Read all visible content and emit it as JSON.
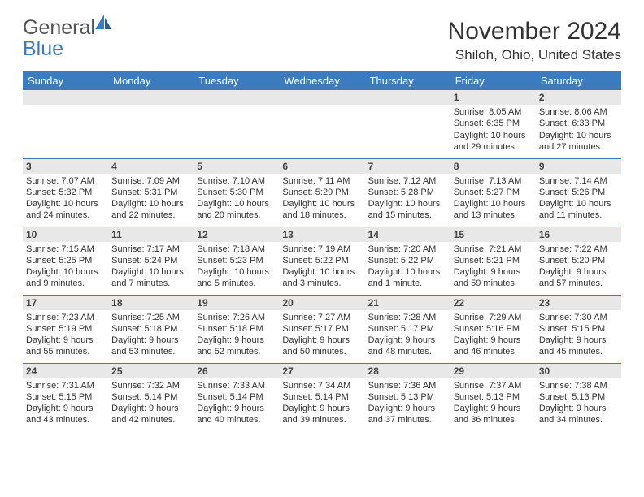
{
  "logo": {
    "text_gray": "General",
    "text_blue": "Blue"
  },
  "title": "November 2024",
  "location": "Shiloh, Ohio, United States",
  "day_headers": [
    "Sunday",
    "Monday",
    "Tuesday",
    "Wednesday",
    "Thursday",
    "Friday",
    "Saturday"
  ],
  "colors": {
    "header_bg": "#3b7bbf",
    "header_fg": "#ffffff",
    "daynum_bg": "#e8e8e8",
    "row_border": "#3b7bbf",
    "body_text": "#333333"
  },
  "weeks": [
    [
      {
        "n": "",
        "sr": "",
        "ss": "",
        "dl": ""
      },
      {
        "n": "",
        "sr": "",
        "ss": "",
        "dl": ""
      },
      {
        "n": "",
        "sr": "",
        "ss": "",
        "dl": ""
      },
      {
        "n": "",
        "sr": "",
        "ss": "",
        "dl": ""
      },
      {
        "n": "",
        "sr": "",
        "ss": "",
        "dl": ""
      },
      {
        "n": "1",
        "sr": "Sunrise: 8:05 AM",
        "ss": "Sunset: 6:35 PM",
        "dl": "Daylight: 10 hours and 29 minutes."
      },
      {
        "n": "2",
        "sr": "Sunrise: 8:06 AM",
        "ss": "Sunset: 6:33 PM",
        "dl": "Daylight: 10 hours and 27 minutes."
      }
    ],
    [
      {
        "n": "3",
        "sr": "Sunrise: 7:07 AM",
        "ss": "Sunset: 5:32 PM",
        "dl": "Daylight: 10 hours and 24 minutes."
      },
      {
        "n": "4",
        "sr": "Sunrise: 7:09 AM",
        "ss": "Sunset: 5:31 PM",
        "dl": "Daylight: 10 hours and 22 minutes."
      },
      {
        "n": "5",
        "sr": "Sunrise: 7:10 AM",
        "ss": "Sunset: 5:30 PM",
        "dl": "Daylight: 10 hours and 20 minutes."
      },
      {
        "n": "6",
        "sr": "Sunrise: 7:11 AM",
        "ss": "Sunset: 5:29 PM",
        "dl": "Daylight: 10 hours and 18 minutes."
      },
      {
        "n": "7",
        "sr": "Sunrise: 7:12 AM",
        "ss": "Sunset: 5:28 PM",
        "dl": "Daylight: 10 hours and 15 minutes."
      },
      {
        "n": "8",
        "sr": "Sunrise: 7:13 AM",
        "ss": "Sunset: 5:27 PM",
        "dl": "Daylight: 10 hours and 13 minutes."
      },
      {
        "n": "9",
        "sr": "Sunrise: 7:14 AM",
        "ss": "Sunset: 5:26 PM",
        "dl": "Daylight: 10 hours and 11 minutes."
      }
    ],
    [
      {
        "n": "10",
        "sr": "Sunrise: 7:15 AM",
        "ss": "Sunset: 5:25 PM",
        "dl": "Daylight: 10 hours and 9 minutes."
      },
      {
        "n": "11",
        "sr": "Sunrise: 7:17 AM",
        "ss": "Sunset: 5:24 PM",
        "dl": "Daylight: 10 hours and 7 minutes."
      },
      {
        "n": "12",
        "sr": "Sunrise: 7:18 AM",
        "ss": "Sunset: 5:23 PM",
        "dl": "Daylight: 10 hours and 5 minutes."
      },
      {
        "n": "13",
        "sr": "Sunrise: 7:19 AM",
        "ss": "Sunset: 5:22 PM",
        "dl": "Daylight: 10 hours and 3 minutes."
      },
      {
        "n": "14",
        "sr": "Sunrise: 7:20 AM",
        "ss": "Sunset: 5:22 PM",
        "dl": "Daylight: 10 hours and 1 minute."
      },
      {
        "n": "15",
        "sr": "Sunrise: 7:21 AM",
        "ss": "Sunset: 5:21 PM",
        "dl": "Daylight: 9 hours and 59 minutes."
      },
      {
        "n": "16",
        "sr": "Sunrise: 7:22 AM",
        "ss": "Sunset: 5:20 PM",
        "dl": "Daylight: 9 hours and 57 minutes."
      }
    ],
    [
      {
        "n": "17",
        "sr": "Sunrise: 7:23 AM",
        "ss": "Sunset: 5:19 PM",
        "dl": "Daylight: 9 hours and 55 minutes."
      },
      {
        "n": "18",
        "sr": "Sunrise: 7:25 AM",
        "ss": "Sunset: 5:18 PM",
        "dl": "Daylight: 9 hours and 53 minutes."
      },
      {
        "n": "19",
        "sr": "Sunrise: 7:26 AM",
        "ss": "Sunset: 5:18 PM",
        "dl": "Daylight: 9 hours and 52 minutes."
      },
      {
        "n": "20",
        "sr": "Sunrise: 7:27 AM",
        "ss": "Sunset: 5:17 PM",
        "dl": "Daylight: 9 hours and 50 minutes."
      },
      {
        "n": "21",
        "sr": "Sunrise: 7:28 AM",
        "ss": "Sunset: 5:17 PM",
        "dl": "Daylight: 9 hours and 48 minutes."
      },
      {
        "n": "22",
        "sr": "Sunrise: 7:29 AM",
        "ss": "Sunset: 5:16 PM",
        "dl": "Daylight: 9 hours and 46 minutes."
      },
      {
        "n": "23",
        "sr": "Sunrise: 7:30 AM",
        "ss": "Sunset: 5:15 PM",
        "dl": "Daylight: 9 hours and 45 minutes."
      }
    ],
    [
      {
        "n": "24",
        "sr": "Sunrise: 7:31 AM",
        "ss": "Sunset: 5:15 PM",
        "dl": "Daylight: 9 hours and 43 minutes."
      },
      {
        "n": "25",
        "sr": "Sunrise: 7:32 AM",
        "ss": "Sunset: 5:14 PM",
        "dl": "Daylight: 9 hours and 42 minutes."
      },
      {
        "n": "26",
        "sr": "Sunrise: 7:33 AM",
        "ss": "Sunset: 5:14 PM",
        "dl": "Daylight: 9 hours and 40 minutes."
      },
      {
        "n": "27",
        "sr": "Sunrise: 7:34 AM",
        "ss": "Sunset: 5:14 PM",
        "dl": "Daylight: 9 hours and 39 minutes."
      },
      {
        "n": "28",
        "sr": "Sunrise: 7:36 AM",
        "ss": "Sunset: 5:13 PM",
        "dl": "Daylight: 9 hours and 37 minutes."
      },
      {
        "n": "29",
        "sr": "Sunrise: 7:37 AM",
        "ss": "Sunset: 5:13 PM",
        "dl": "Daylight: 9 hours and 36 minutes."
      },
      {
        "n": "30",
        "sr": "Sunrise: 7:38 AM",
        "ss": "Sunset: 5:13 PM",
        "dl": "Daylight: 9 hours and 34 minutes."
      }
    ]
  ]
}
